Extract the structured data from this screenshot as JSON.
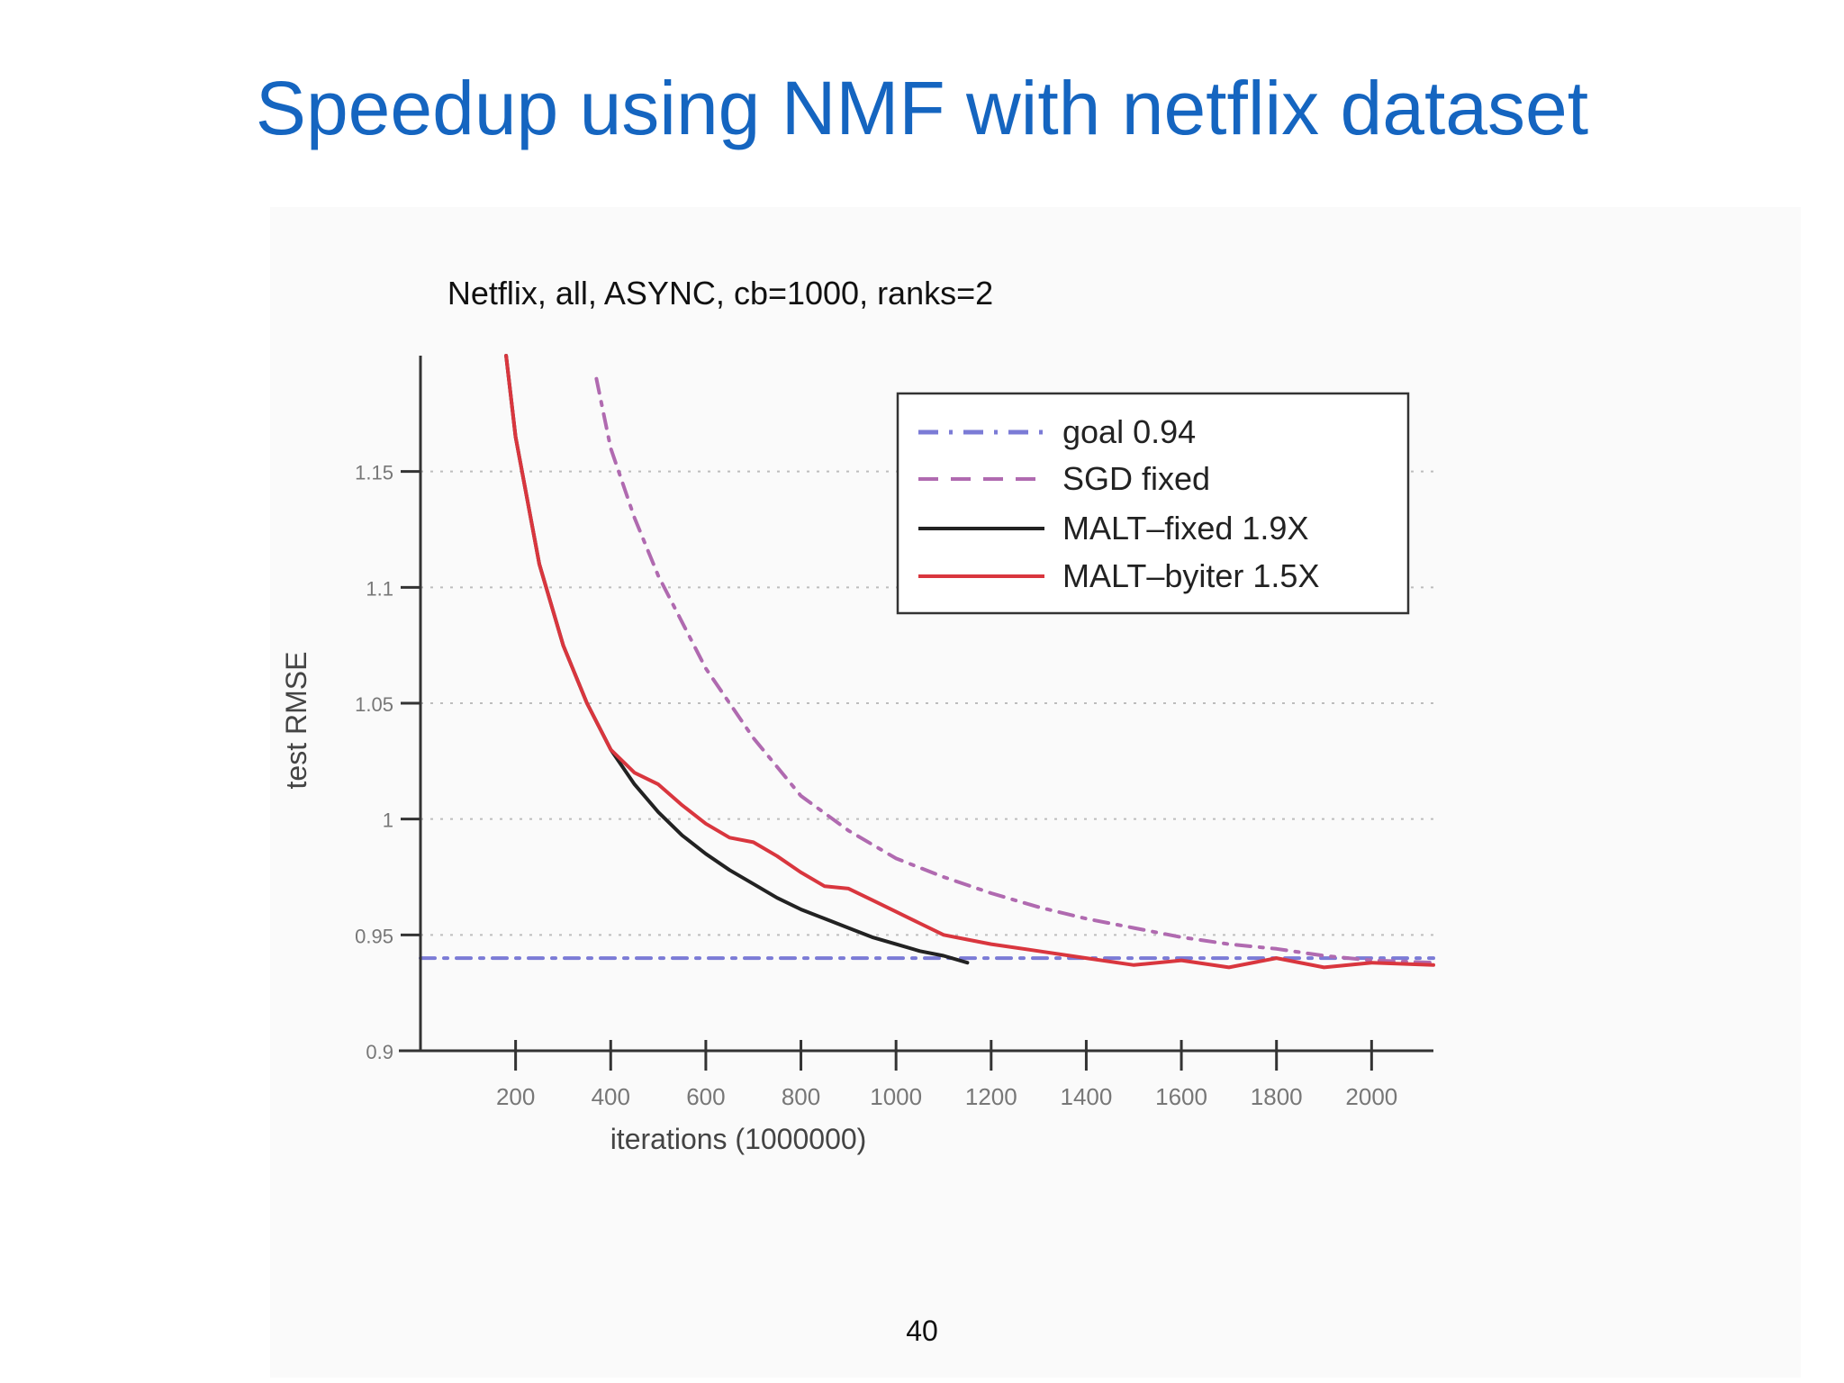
{
  "slide": {
    "title": "Speedup using NMF with netflix dataset",
    "page_number": "40"
  },
  "chart_data": {
    "type": "line",
    "title": "Netflix, all, ASYNC, cb=1000, ranks=2",
    "xlabel": "iterations (1000000)",
    "ylabel": "test RMSE",
    "xlim": [
      0,
      2130
    ],
    "ylim": [
      0.9,
      1.2
    ],
    "xticks": [
      200,
      400,
      600,
      800,
      1000,
      1200,
      1400,
      1600,
      1800,
      2000
    ],
    "xtick_labels": [
      "200",
      "400",
      "600",
      "800",
      "1000",
      "1200",
      "1400",
      "1600",
      "1800",
      "2000"
    ],
    "yticks": [
      0.9,
      0.95,
      1,
      1.05,
      1.1,
      1.15
    ],
    "ytick_labels": [
      "0.9",
      "0.95",
      "1",
      "1.05",
      "1.1",
      "1.15"
    ],
    "grid": true,
    "legend_position": "top-right",
    "series": [
      {
        "name": "goal 0.94",
        "color": "#7b7bd6",
        "style": "dashdot",
        "x": [
          0,
          2130
        ],
        "y": [
          0.94,
          0.94
        ]
      },
      {
        "name": "SGD fixed",
        "color": "#b06ab0",
        "style": "dashdot",
        "x": [
          370,
          400,
          450,
          500,
          550,
          600,
          700,
          800,
          900,
          1000,
          1100,
          1200,
          1300,
          1400,
          1500,
          1600,
          1700,
          1800,
          1900,
          2000,
          2130
        ],
        "y": [
          1.19,
          1.16,
          1.13,
          1.105,
          1.085,
          1.065,
          1.035,
          1.01,
          0.995,
          0.983,
          0.975,
          0.968,
          0.962,
          0.957,
          0.953,
          0.949,
          0.946,
          0.944,
          0.941,
          0.939,
          0.938
        ]
      },
      {
        "name": "MALT–fixed 1.9X",
        "color": "#222222",
        "style": "solid",
        "x": [
          180,
          200,
          250,
          300,
          350,
          400,
          450,
          500,
          550,
          600,
          650,
          700,
          750,
          800,
          850,
          900,
          950,
          1000,
          1050,
          1100,
          1150
        ],
        "y": [
          1.2,
          1.165,
          1.11,
          1.075,
          1.05,
          1.03,
          1.015,
          1.003,
          0.993,
          0.985,
          0.978,
          0.972,
          0.966,
          0.961,
          0.957,
          0.953,
          0.949,
          0.946,
          0.943,
          0.941,
          0.938
        ]
      },
      {
        "name": "MALT–byiter 1.5X",
        "color": "#d9363e",
        "style": "solid",
        "x": [
          180,
          200,
          250,
          300,
          350,
          400,
          450,
          500,
          550,
          600,
          650,
          700,
          750,
          800,
          850,
          900,
          950,
          1000,
          1050,
          1100,
          1150,
          1200,
          1300,
          1400,
          1500,
          1600,
          1700,
          1800,
          1900,
          2000,
          2130
        ],
        "y": [
          1.2,
          1.165,
          1.11,
          1.075,
          1.05,
          1.03,
          1.02,
          1.015,
          1.006,
          0.998,
          0.992,
          0.99,
          0.984,
          0.977,
          0.971,
          0.97,
          0.965,
          0.96,
          0.955,
          0.95,
          0.948,
          0.946,
          0.943,
          0.94,
          0.937,
          0.939,
          0.936,
          0.94,
          0.936,
          0.938,
          0.937
        ]
      }
    ]
  }
}
